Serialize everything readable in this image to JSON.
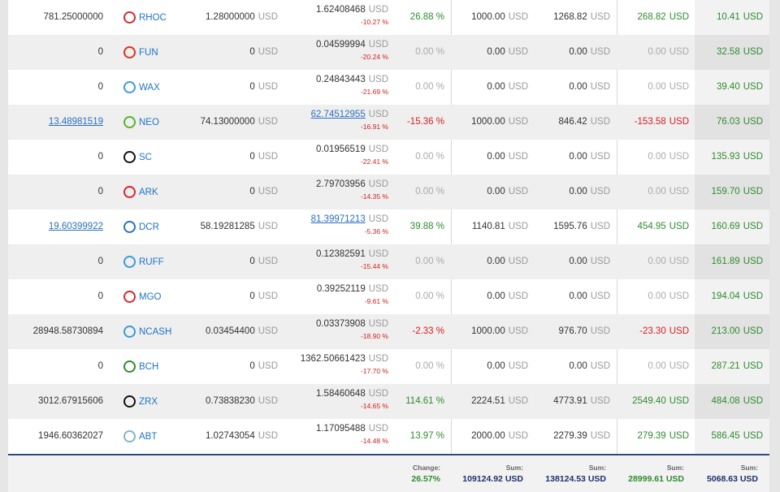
{
  "currency": "USD",
  "table": {
    "rows": [
      {
        "amount": "781.25000000",
        "coin": "RHOC",
        "buy": "1.28000000",
        "price": "1.62408468",
        "change24": "-10.27 %",
        "pct": "26.88 %",
        "invested": "1000.00",
        "value": "1268.82",
        "profit": "268.82",
        "last": "10.41"
      },
      {
        "amount": "0",
        "coin": "FUN",
        "buy": "0",
        "price": "0.04599994",
        "change24": "-20.24 %",
        "pct": "0.00 %",
        "invested": "0.00",
        "value": "0.00",
        "profit": "0.00",
        "last": "32.58"
      },
      {
        "amount": "0",
        "coin": "WAX",
        "buy": "0",
        "price": "0.24843443",
        "change24": "-21.69 %",
        "pct": "0.00 %",
        "invested": "0.00",
        "value": "0.00",
        "profit": "0.00",
        "last": "39.40"
      },
      {
        "amount": "13.48981519",
        "amount_link": true,
        "coin": "NEO",
        "buy": "74.13000000",
        "price": "62.74512955",
        "price_link": true,
        "change24": "-16.91 %",
        "pct": "-15.36 %",
        "invested": "1000.00",
        "value": "846.42",
        "profit": "-153.58",
        "last": "76.03"
      },
      {
        "amount": "0",
        "coin": "SC",
        "buy": "0",
        "price": "0.01956519",
        "change24": "-22.41 %",
        "pct": "0.00 %",
        "invested": "0.00",
        "value": "0.00",
        "profit": "0.00",
        "last": "135.93"
      },
      {
        "amount": "0",
        "coin": "ARK",
        "buy": "0",
        "price": "2.79703956",
        "change24": "-14.35 %",
        "pct": "0.00 %",
        "invested": "0.00",
        "value": "0.00",
        "profit": "0.00",
        "last": "159.70"
      },
      {
        "amount": "19.60399922",
        "amount_link": true,
        "coin": "DCR",
        "buy": "58.19281285",
        "price": "81.39971213",
        "price_link": true,
        "change24": "-5.36 %",
        "pct": "39.88 %",
        "invested": "1140.81",
        "value": "1595.76",
        "profit": "454.95",
        "last": "160.69"
      },
      {
        "amount": "0",
        "coin": "RUFF",
        "buy": "0",
        "price": "0.12382591",
        "change24": "-15.44 %",
        "pct": "0.00 %",
        "invested": "0.00",
        "value": "0.00",
        "profit": "0.00",
        "last": "161.89"
      },
      {
        "amount": "0",
        "coin": "MGO",
        "buy": "0",
        "price": "0.39252119",
        "change24": "-9.61 %",
        "pct": "0.00 %",
        "invested": "0.00",
        "value": "0.00",
        "profit": "0.00",
        "last": "194.04"
      },
      {
        "amount": "28948.58730894",
        "coin": "NCASH",
        "buy": "0.03454400",
        "price": "0.03373908",
        "change24": "-18.90 %",
        "pct": "-2.33 %",
        "invested": "1000.00",
        "value": "976.70",
        "profit": "-23.30",
        "last": "213.00"
      },
      {
        "amount": "0",
        "coin": "BCH",
        "buy": "0",
        "price": "1362.50661423",
        "change24": "-17.70 %",
        "pct": "0.00 %",
        "invested": "0.00",
        "value": "0.00",
        "profit": "0.00",
        "last": "287.21"
      },
      {
        "amount": "3012.67915606",
        "coin": "ZRX",
        "buy": "0.73838230",
        "price": "1.58460648",
        "change24": "-14.65 %",
        "pct": "114.61 %",
        "invested": "2224.51",
        "value": "4773.91",
        "profit": "2549.40",
        "last": "484.08"
      },
      {
        "amount": "1946.60362027",
        "coin": "ABT",
        "buy": "1.02743054",
        "price": "1.17095488",
        "change24": "-14.48 %",
        "pct": "13.97 %",
        "invested": "2000.00",
        "value": "2279.39",
        "profit": "279.39",
        "last": "586.45"
      }
    ]
  },
  "footer": [
    {
      "label": "Change:",
      "value": "26.57%",
      "color": "#2e8b2e"
    },
    {
      "label": "Sum:",
      "value": "109124.92 USD",
      "color": "#1f2f6b"
    },
    {
      "label": "Sum:",
      "value": "138124.53 USD",
      "color": "#1f2f6b"
    },
    {
      "label": "Sum:",
      "value": "28999.61 USD",
      "color": "#2e8b2e"
    },
    {
      "label": "Sum:",
      "value": "5068.63 USD",
      "color": "#1f2f6b"
    }
  ]
}
